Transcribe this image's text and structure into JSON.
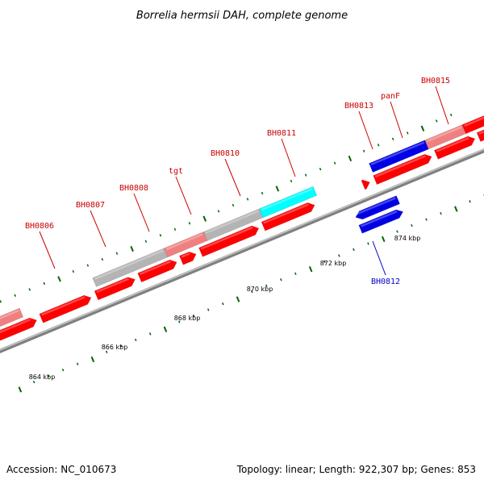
{
  "title": "Borrelia hermsii DAH, complete genome",
  "footer": {
    "accession": "Accession: NC_010673",
    "summary": "Topology: linear; Length: 922,307 bp; Genes: 853"
  },
  "colors": {
    "forward_cds": "#ff0000",
    "forward_light": "#f08080",
    "gray_feature": "#b4b4b4",
    "cyan_feature": "#00ffff",
    "reverse_cds": "#0000e6",
    "backbone": "#808080",
    "tick": "#006400",
    "label_red": "#cc0000",
    "label_blue": "#0000cc"
  },
  "scale_labels": [
    {
      "id": "t864",
      "text": "864 kbp"
    },
    {
      "id": "t866",
      "text": "866 kbp"
    },
    {
      "id": "t868",
      "text": "868 kbp"
    },
    {
      "id": "t870",
      "text": "870 kbp"
    },
    {
      "id": "t872",
      "text": "872 kbp"
    },
    {
      "id": "t874",
      "text": "874 kbp"
    }
  ],
  "genes": [
    {
      "id": "BH0806",
      "text": "BH0806",
      "strand": "forward"
    },
    {
      "id": "BH0807",
      "text": "BH0807",
      "strand": "forward"
    },
    {
      "id": "BH0808",
      "text": "BH0808",
      "strand": "forward"
    },
    {
      "id": "tgt",
      "text": "tgt",
      "strand": "forward"
    },
    {
      "id": "BH0810",
      "text": "BH0810",
      "strand": "forward"
    },
    {
      "id": "BH0811",
      "text": "BH0811",
      "strand": "forward"
    },
    {
      "id": "BH0812",
      "text": "BH0812",
      "strand": "reverse"
    },
    {
      "id": "BH0813",
      "text": "BH0813",
      "strand": "forward"
    },
    {
      "id": "panF",
      "text": "panF",
      "strand": "forward"
    },
    {
      "id": "BH0815",
      "text": "BH0815",
      "strand": "forward"
    }
  ]
}
